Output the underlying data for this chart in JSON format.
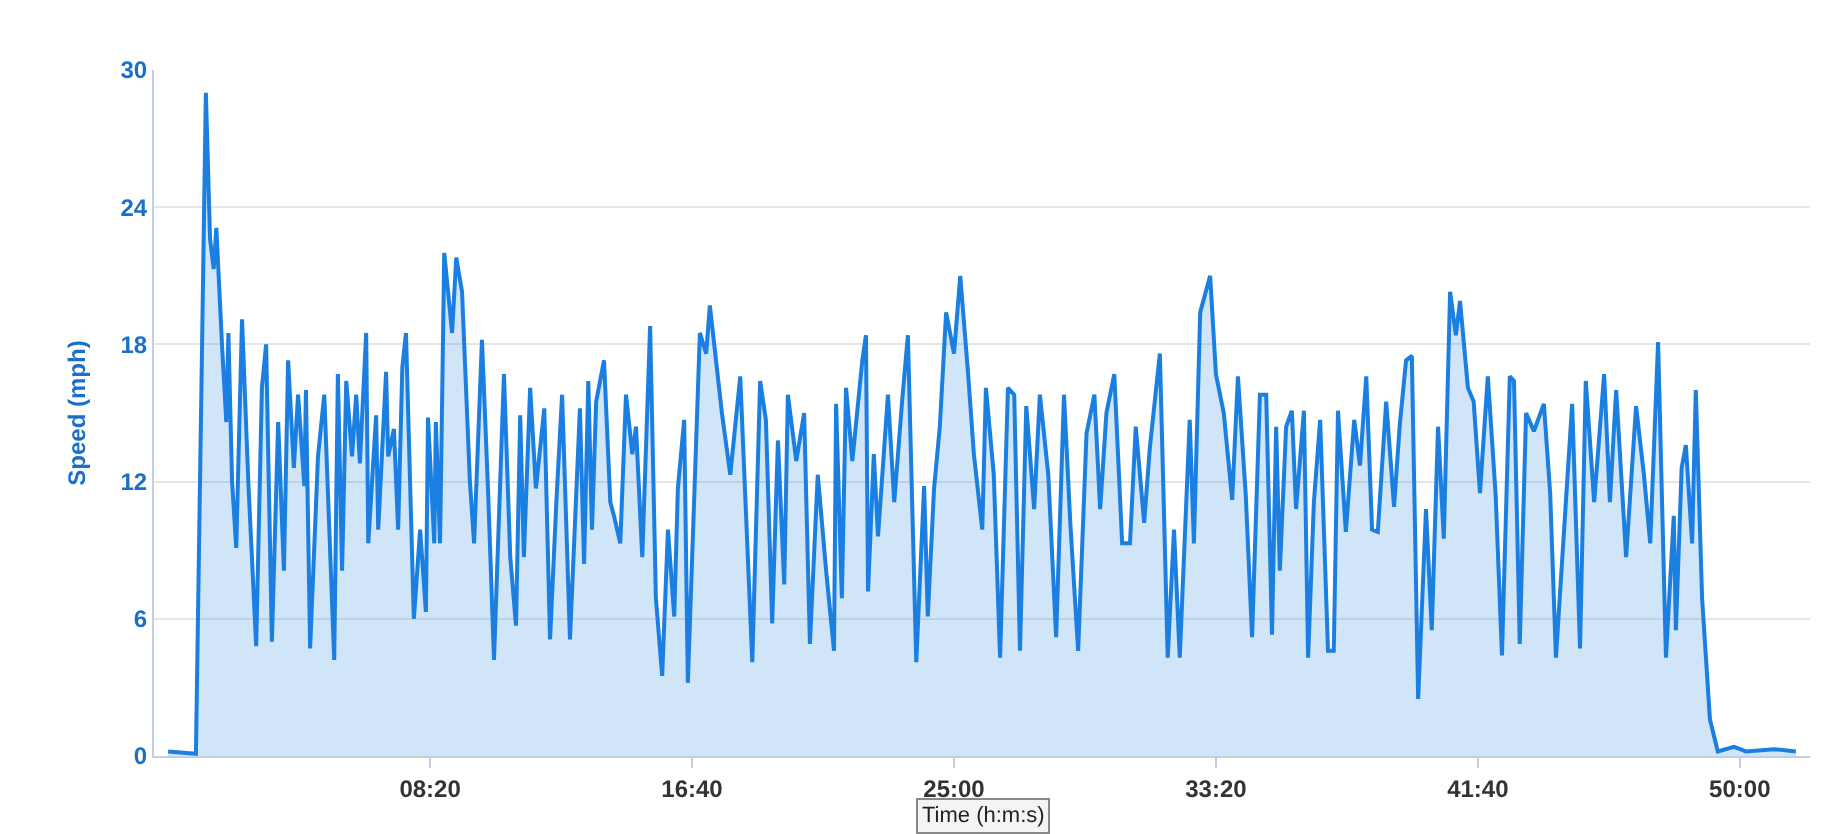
{
  "chart_data": {
    "type": "area",
    "xlabel": "Time (h:m:s)",
    "ylabel": "Speed (mph)",
    "x": [
      0,
      53,
      72,
      80,
      87,
      92,
      103,
      111,
      115,
      122,
      130,
      141,
      153,
      168,
      179,
      187,
      198,
      210,
      221,
      229,
      240,
      248,
      260,
      263,
      271,
      286,
      298,
      317,
      324,
      332,
      340,
      351,
      359,
      366,
      378,
      382,
      397,
      401,
      416,
      420,
      431,
      439,
      447,
      454,
      469,
      481,
      492,
      496,
      508,
      511,
      519,
      527,
      542,
      550,
      561,
      576,
      584,
      599,
      611,
      622,
      641,
      653,
      664,
      672,
      679,
      691,
      702,
      718,
      729,
      741,
      752,
      767,
      786,
      794,
      802,
      809,
      817,
      832,
      844,
      851,
      863,
      874,
      886,
      893,
      905,
      920,
      931,
      943,
      954,
      966,
      973,
      985,
      992,
      1015,
      1027,
      1034,
      1057,
      1073,
      1092,
      1115,
      1130,
      1141,
      1153,
      1164,
      1176,
      1183,
      1199,
      1214,
      1225,
      1240,
      1256,
      1271,
      1275,
      1286,
      1294,
      1306,
      1325,
      1332,
      1336,
      1347,
      1355,
      1374,
      1386,
      1401,
      1412,
      1428,
      1443,
      1450,
      1462,
      1473,
      1485,
      1500,
      1512,
      1527,
      1538,
      1554,
      1561,
      1576,
      1588,
      1603,
      1615,
      1626,
      1638,
      1653,
      1664,
      1680,
      1695,
      1710,
      1722,
      1737,
      1753,
      1768,
      1779,
      1791,
      1806,
      1821,
      1836,
      1847,
      1863,
      1874,
      1893,
      1908,
      1920,
      1931,
      1950,
      1958,
      1970,
      1989,
      2000,
      2015,
      2031,
      2042,
      2057,
      2069,
      2084,
      2096,
      2107,
      2115,
      2122,
      2134,
      2145,
      2153,
      2168,
      2176,
      2187,
      2199,
      2214,
      2225,
      2233,
      2248,
      2264,
      2275,
      2287,
      2298,
      2309,
      2325,
      2340,
      2351,
      2363,
      2374,
      2386,
      2401,
      2412,
      2424,
      2435,
      2447,
      2458,
      2466,
      2481,
      2492,
      2504,
      2519,
      2534,
      2546,
      2561,
      2569,
      2580,
      2592,
      2607,
      2626,
      2638,
      2649,
      2668,
      2680,
      2695,
      2706,
      2722,
      2741,
      2752,
      2764,
      2783,
      2802,
      2817,
      2829,
      2844,
      2859,
      2874,
      2878,
      2889,
      2897,
      2909,
      2916,
      2928,
      2943,
      2958,
      2989,
      3012,
      3065,
      3107
    ],
    "series": [
      {
        "color": "#1a7fe0",
        "values": [
          0.2,
          0.1,
          29.0,
          22.6,
          21.3,
          23.1,
          17.9,
          14.6,
          18.5,
          12.0,
          9.1,
          19.1,
          12.0,
          4.8,
          16.1,
          18.0,
          5.0,
          14.6,
          8.1,
          17.3,
          12.6,
          15.8,
          11.8,
          16.0,
          4.7,
          13.1,
          15.8,
          4.2,
          16.7,
          8.1,
          16.4,
          13.1,
          15.8,
          12.8,
          18.5,
          9.3,
          14.9,
          9.9,
          16.8,
          13.1,
          14.3,
          9.9,
          17.0,
          18.5,
          6.0,
          9.9,
          6.3,
          14.8,
          9.3,
          14.6,
          9.3,
          22.0,
          18.5,
          21.8,
          20.3,
          12.0,
          9.3,
          18.2,
          11.4,
          4.2,
          16.7,
          8.7,
          5.7,
          14.9,
          8.7,
          16.1,
          11.7,
          15.2,
          5.1,
          11.1,
          15.8,
          5.1,
          15.2,
          8.4,
          16.4,
          9.9,
          15.5,
          17.3,
          11.1,
          10.5,
          9.3,
          15.8,
          13.2,
          14.4,
          8.7,
          18.8,
          6.9,
          3.5,
          9.9,
          6.1,
          11.7,
          14.7,
          3.2,
          18.5,
          17.6,
          19.7,
          15.0,
          12.3,
          16.6,
          4.1,
          16.4,
          14.7,
          5.8,
          13.8,
          7.5,
          15.8,
          12.9,
          15.0,
          4.9,
          12.3,
          8.1,
          4.6,
          15.4,
          6.9,
          16.1,
          12.9,
          17.3,
          18.4,
          7.2,
          13.2,
          9.6,
          15.8,
          11.1,
          15.5,
          18.4,
          4.1,
          11.8,
          6.1,
          11.7,
          14.4,
          19.4,
          17.6,
          21.0,
          16.7,
          13.2,
          9.9,
          16.1,
          12.3,
          4.3,
          16.1,
          15.8,
          4.6,
          15.3,
          10.8,
          15.8,
          12.3,
          5.2,
          15.8,
          10.2,
          4.6,
          14.1,
          15.8,
          10.8,
          15.0,
          16.7,
          9.3,
          9.3,
          14.4,
          10.2,
          13.5,
          17.6,
          4.3,
          9.9,
          4.3,
          14.7,
          9.3,
          19.4,
          21.0,
          16.7,
          15.0,
          11.2,
          16.6,
          11.4,
          5.2,
          15.8,
          15.8,
          5.3,
          14.4,
          8.1,
          14.4,
          15.1,
          10.8,
          15.1,
          4.3,
          11.1,
          14.7,
          4.6,
          4.6,
          15.1,
          9.8,
          14.7,
          12.7,
          16.6,
          9.9,
          9.8,
          15.5,
          10.9,
          14.5,
          17.3,
          17.5,
          2.5,
          10.8,
          5.5,
          14.4,
          9.5,
          20.3,
          18.4,
          19.9,
          16.1,
          15.5,
          11.5,
          16.6,
          11.4,
          4.4,
          16.6,
          16.4,
          4.9,
          15.0,
          14.2,
          15.4,
          11.5,
          4.3,
          11.1,
          15.4,
          4.7,
          16.4,
          11.1,
          16.7,
          11.1,
          16.0,
          8.7,
          15.3,
          12.3,
          9.3,
          18.1,
          4.3,
          10.5,
          5.5,
          12.6,
          13.6,
          9.3,
          16.0,
          6.9,
          1.6,
          0.2,
          0.4,
          0.2,
          0.3,
          0.2
        ]
      }
    ],
    "xlim": [
      -27,
      3134
    ],
    "xticks": [
      {
        "value": 500,
        "label": "08:20"
      },
      {
        "value": 1000,
        "label": "16:40"
      },
      {
        "value": 1500,
        "label": "25:00"
      },
      {
        "value": 2000,
        "label": "33:20"
      },
      {
        "value": 2500,
        "label": "41:40"
      },
      {
        "value": 3000,
        "label": "50:00"
      }
    ],
    "ylim": [
      0,
      30
    ],
    "yticks": [
      0,
      6,
      12,
      18,
      24,
      30
    ],
    "grid": "y",
    "marker": "none",
    "line_style": "solid"
  }
}
